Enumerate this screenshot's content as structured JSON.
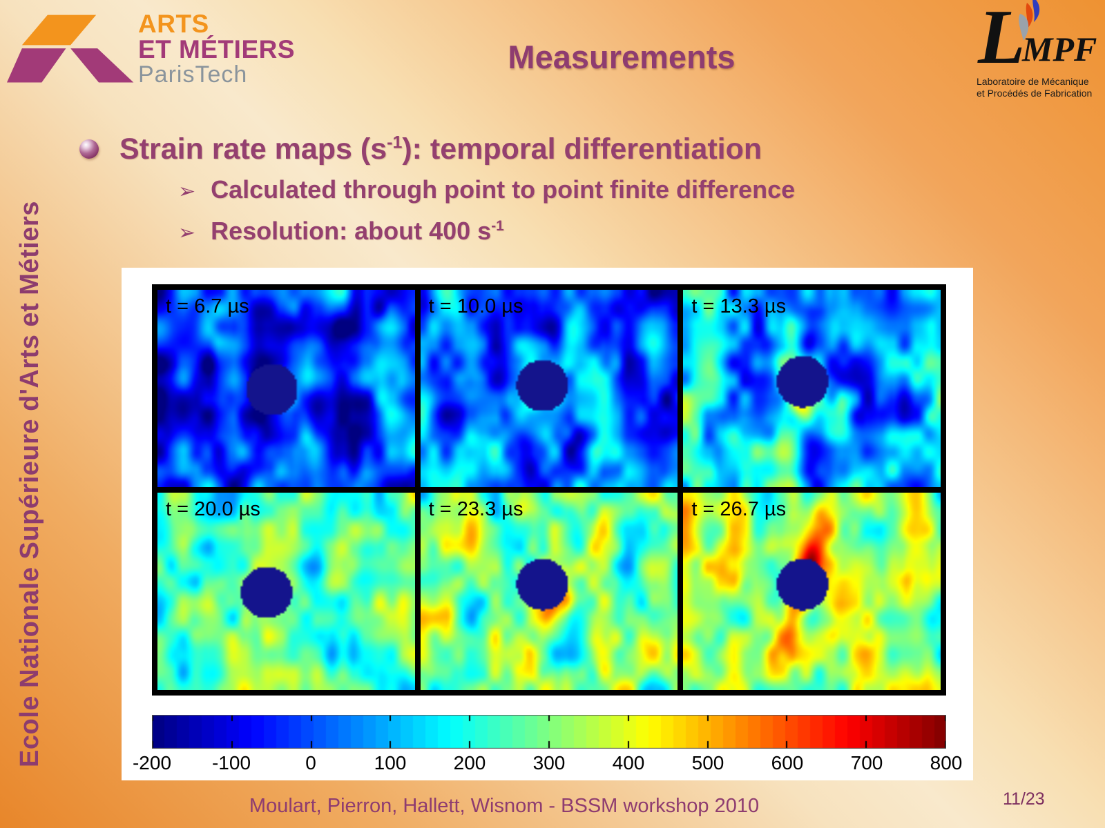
{
  "slide": {
    "title": "Measurements",
    "sidebar_text": "Ecole Nationale Supérieure d'Arts et Métiers",
    "footer": "Moulart, Pierron, Hallett, Wisnom - BSSM workshop 2010",
    "page_number": "11/23"
  },
  "logos": {
    "arts_et_metiers": {
      "line1": "ARTS",
      "line2": "ET MÉTIERS",
      "line3": "ParisTech"
    },
    "lmpf": {
      "initial": "L",
      "rest": "MPF",
      "subtitle1": "Laboratoire de Mécanique",
      "subtitle2": "et Procédés de Fabrication"
    }
  },
  "content": {
    "heading": {
      "pre": "Strain rate maps (s",
      "sup": "-1",
      "post": "): temporal differentiation"
    },
    "sub_bullets": [
      {
        "marker": "➢",
        "pre": "Calculated through point to point finite difference",
        "sup": ""
      },
      {
        "marker": "➢",
        "pre": "Resolution: about 400 s",
        "sup": "-1"
      }
    ]
  },
  "chart_data": {
    "type": "heatmap",
    "quantity": "strain rate (s-1)",
    "colormap": "jet",
    "value_range": [
      -200,
      800
    ],
    "colorbar_ticks": [
      "-200",
      "-100",
      "0",
      "100",
      "200",
      "300",
      "400",
      "500",
      "600",
      "700",
      "800"
    ],
    "panels": [
      {
        "label": "t = 6.7 µs",
        "time_us": 6.7,
        "mean_level": -10,
        "noise_amp": 170,
        "seed": 101,
        "hole": {
          "x": 0.44,
          "y": 0.5
        }
      },
      {
        "label": "t = 10.0 µs",
        "time_us": 10.0,
        "mean_level": 20,
        "noise_amp": 170,
        "seed": 202,
        "hole": {
          "x": 0.47,
          "y": 0.48
        }
      },
      {
        "label": "t = 13.3 µs",
        "time_us": 13.3,
        "mean_level": 90,
        "noise_amp": 185,
        "seed": 303,
        "hole": {
          "x": 0.46,
          "y": 0.46
        },
        "hot": {
          "dx": -0.02,
          "dy": 0.11,
          "sx": 0.045,
          "sy": 0.08,
          "amp": 330
        }
      },
      {
        "label": "t = 20.0 µs",
        "time_us": 20.0,
        "mean_level": 240,
        "noise_amp": 145,
        "seed": 404,
        "hole": {
          "x": 0.42,
          "y": 0.5
        }
      },
      {
        "label": "t = 23.3 µs",
        "time_us": 23.3,
        "mean_level": 290,
        "noise_amp": 165,
        "seed": 505,
        "hole": {
          "x": 0.47,
          "y": 0.46
        },
        "hot": {
          "dx": 0.04,
          "dy": 0.04,
          "sx": 0.09,
          "sy": 0.12,
          "amp": 310
        }
      },
      {
        "label": "t = 26.7 µs",
        "time_us": 26.7,
        "mean_level": 330,
        "noise_amp": 155,
        "seed": 606,
        "hole": {
          "x": 0.46,
          "y": 0.46
        },
        "streak": {
          "ax": -0.25,
          "ay": 0.97,
          "w": 0.055,
          "len": 0.4,
          "amp": 430
        }
      }
    ]
  }
}
